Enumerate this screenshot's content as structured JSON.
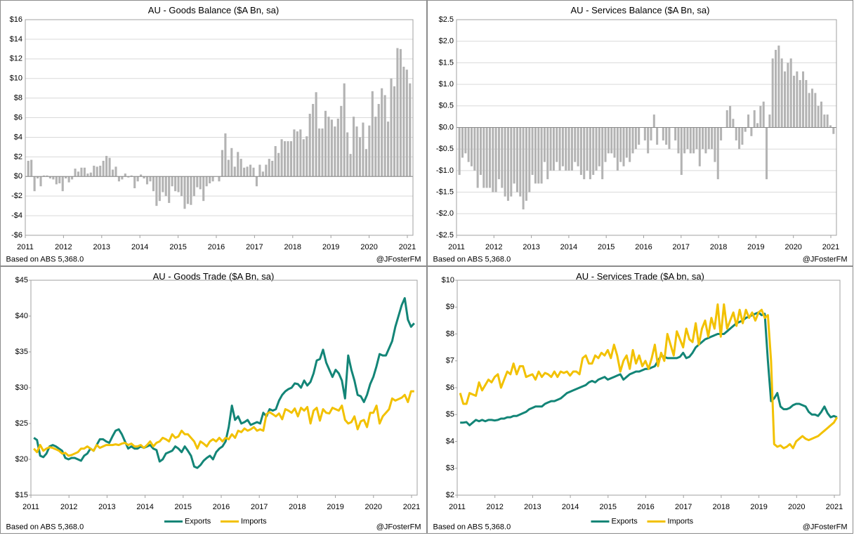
{
  "chart_data": [
    {
      "type": "bar",
      "title": "AU - Goods Balance ($A Bn, sa)",
      "note": "Based on ABS 5,368.0",
      "source": "@JFosterFM",
      "color": "#b3b3b3",
      "grid": true,
      "xlim": [
        2011,
        2021
      ],
      "xticks": [
        2011,
        2012,
        2013,
        2014,
        2015,
        2016,
        2017,
        2018,
        2019,
        2020,
        2021
      ],
      "ylim": [
        -6,
        16
      ],
      "yticks": [
        {
          "value": -6,
          "label": "-$6"
        },
        {
          "value": -4,
          "label": "-$4"
        },
        {
          "value": -2,
          "label": "-$2"
        },
        {
          "value": 0,
          "label": "$0"
        },
        {
          "value": 2,
          "label": "$2"
        },
        {
          "value": 4,
          "label": "$4"
        },
        {
          "value": 6,
          "label": "$6"
        },
        {
          "value": 8,
          "label": "$8"
        },
        {
          "value": 10,
          "label": "$10"
        },
        {
          "value": 12,
          "label": "$12"
        },
        {
          "value": 14,
          "label": "$14"
        },
        {
          "value": 16,
          "label": "$16"
        }
      ],
      "values": [
        1.6,
        1.7,
        -1.5,
        -0.2,
        -1.0,
        0.1,
        0.1,
        -0.2,
        -0.3,
        -0.8,
        -0.7,
        -1.5,
        -0.2,
        -0.6,
        -0.3,
        0.8,
        0.5,
        0.9,
        0.9,
        0.3,
        0.4,
        1.1,
        1.0,
        1.1,
        1.6,
        2.1,
        1.9,
        0.7,
        1.0,
        -0.5,
        -0.3,
        0.3,
        -0.1,
        0.1,
        -1.2,
        -0.5,
        0.2,
        -0.2,
        -0.8,
        -0.5,
        -1.5,
        -3.0,
        -2.5,
        -1.6,
        -2.0,
        -2.7,
        -1.0,
        -1.5,
        -1.6,
        -2.0,
        -3.3,
        -2.8,
        -2.9,
        -2.0,
        -1.1,
        -1.3,
        -2.5,
        -1.0,
        -0.7,
        -0.5,
        0.0,
        -0.5,
        2.7,
        4.4,
        1.7,
        2.9,
        1.0,
        2.5,
        1.8,
        0.9,
        1.0,
        1.2,
        0.9,
        -1.0,
        1.2,
        0.5,
        1.2,
        1.8,
        1.6,
        3.1,
        2.4,
        3.8,
        3.6,
        3.6,
        3.6,
        4.8,
        4.6,
        4.8,
        3.8,
        4.1,
        6.4,
        7.4,
        8.6,
        4.9,
        4.9,
        6.7,
        6.1,
        5.8,
        5.1,
        5.9,
        7.2,
        9.5,
        4.5,
        2.3,
        6.1,
        5.1,
        4.0,
        5.5,
        2.8,
        5.2,
        8.7,
        6.1,
        7.4,
        9.0,
        8.3,
        5.6,
        10.0,
        9.2,
        13.1,
        13.0,
        11.2,
        10.9,
        9.5
      ]
    },
    {
      "type": "bar",
      "title": "AU - Services Balance ($A Bn, sa)",
      "note": "Based on ABS 5,368.0",
      "source": "@JFosterFM",
      "color": "#b3b3b3",
      "grid": true,
      "xlim": [
        2011,
        2021
      ],
      "xticks": [
        2011,
        2012,
        2013,
        2014,
        2015,
        2016,
        2017,
        2018,
        2019,
        2020,
        2021
      ],
      "ylim": [
        -2.5,
        2.5
      ],
      "yticks": [
        {
          "value": -2.5,
          "label": "-$2.5"
        },
        {
          "value": -2,
          "label": "-$2.0"
        },
        {
          "value": -1.5,
          "label": "-$1.5"
        },
        {
          "value": -1,
          "label": "-$1.0"
        },
        {
          "value": -0.5,
          "label": "-$0.5"
        },
        {
          "value": 0,
          "label": "$0.0"
        },
        {
          "value": 0.5,
          "label": "$0.5"
        },
        {
          "value": 1,
          "label": "$1.0"
        },
        {
          "value": 1.5,
          "label": "$1.5"
        },
        {
          "value": 2,
          "label": "$2.0"
        },
        {
          "value": 2.5,
          "label": "$2.5"
        }
      ],
      "values": [
        -1.1,
        -0.7,
        -0.6,
        -0.8,
        -0.9,
        -1.0,
        -1.4,
        -1.1,
        -1.4,
        -1.4,
        -1.4,
        -1.5,
        -1.5,
        -1.2,
        -1.4,
        -1.6,
        -1.7,
        -1.6,
        -1.3,
        -1.5,
        -1.6,
        -1.9,
        -1.7,
        -1.5,
        -1.1,
        -1.3,
        -1.3,
        -1.3,
        -0.8,
        -1.2,
        -1.0,
        -1.0,
        -0.8,
        -1.0,
        -0.9,
        -1.0,
        -1.0,
        -1.0,
        -0.8,
        -0.9,
        -1.1,
        -1.2,
        -1.0,
        -1.2,
        -1.1,
        -1.0,
        -0.9,
        -1.2,
        -0.8,
        -0.6,
        -0.6,
        -0.7,
        -1.0,
        -0.8,
        -0.9,
        -0.7,
        -0.8,
        -0.6,
        -0.5,
        -0.4,
        0.0,
        -0.3,
        -0.6,
        -0.3,
        0.3,
        -0.4,
        0.0,
        -0.3,
        -0.4,
        -0.5,
        0.0,
        -0.3,
        -0.6,
        -1.1,
        -0.6,
        -0.5,
        -0.6,
        -0.6,
        -0.5,
        -0.9,
        -0.5,
        -0.6,
        -0.5,
        -0.5,
        -0.8,
        -1.2,
        -0.3,
        0.0,
        0.4,
        0.5,
        0.2,
        -0.3,
        -0.5,
        -0.4,
        -0.1,
        0.3,
        -0.2,
        0.4,
        0.1,
        0.5,
        0.6,
        -1.2,
        0.3,
        1.6,
        1.8,
        1.9,
        1.6,
        1.3,
        1.5,
        1.6,
        1.2,
        1.3,
        1.1,
        1.3,
        1.1,
        0.8,
        0.9,
        0.8,
        0.5,
        0.6,
        0.3,
        0.3,
        0.05,
        -0.15
      ]
    },
    {
      "type": "line",
      "title": "AU - Goods Trade ($A Bn, sa)",
      "note": "Based on ABS 5,368.0",
      "source": "@JFosterFM",
      "grid": false,
      "xlim": [
        2011,
        2021
      ],
      "xticks": [
        2011,
        2012,
        2013,
        2014,
        2015,
        2016,
        2017,
        2018,
        2019,
        2020,
        2021
      ],
      "ylim": [
        15,
        45
      ],
      "yticks": [
        {
          "value": 15,
          "label": "$15"
        },
        {
          "value": 20,
          "label": "$20"
        },
        {
          "value": 25,
          "label": "$25"
        },
        {
          "value": 30,
          "label": "$30"
        },
        {
          "value": 35,
          "label": "$35"
        },
        {
          "value": 40,
          "label": "$40"
        },
        {
          "value": 45,
          "label": "$45"
        }
      ],
      "series": [
        {
          "name": "Exports",
          "color": "#138577",
          "values": [
            23,
            22.7,
            20.5,
            20.3,
            20.8,
            21.8,
            22,
            21.8,
            21.5,
            21.2,
            20.2,
            20,
            20.2,
            20.2,
            20,
            19.8,
            20.5,
            20.8,
            21.5,
            21.2,
            22,
            22.8,
            22.8,
            22.5,
            22.3,
            23.2,
            24,
            24.2,
            23.5,
            22.5,
            21.5,
            21.8,
            21.5,
            21.5,
            21.8,
            21.6,
            21.8,
            22,
            21.5,
            21.3,
            19.7,
            20,
            20.8,
            21,
            21.2,
            21.8,
            21.5,
            21,
            21.8,
            21.2,
            20.5,
            19,
            18.8,
            19.2,
            19.8,
            20.2,
            20.5,
            20,
            21,
            21.5,
            21.8,
            22.5,
            24.5,
            27.5,
            25.5,
            26,
            25,
            25.2,
            25.5,
            24.8,
            25,
            25.2,
            25,
            26.5,
            26,
            27,
            26.8,
            27,
            28.2,
            29,
            29.5,
            29.8,
            30,
            30.6,
            30.5,
            30,
            31,
            30.3,
            30.8,
            32,
            33.8,
            34,
            35.3,
            33.5,
            32.5,
            31.5,
            32.5,
            32,
            31,
            28.5,
            34.5,
            32.5,
            31,
            29,
            28.8,
            28,
            29,
            30.5,
            31.5,
            33,
            34.7,
            34.5,
            34.5,
            35.5,
            36.5,
            38.5,
            40,
            41.5,
            42.5,
            39.5,
            38.5,
            39
          ]
        },
        {
          "name": "Imports",
          "color": "#f2c100",
          "values": [
            21.5,
            21,
            22,
            21.2,
            21.5,
            21.7,
            21.6,
            21.4,
            21.2,
            20.8,
            20.9,
            20.5,
            20.6,
            20.8,
            21,
            21.5,
            21.5,
            21.8,
            21.5,
            21.2,
            22,
            21.6,
            21.8,
            22,
            22,
            22,
            22.1,
            22,
            22.2,
            22.3,
            22,
            22.2,
            21.8,
            21.8,
            22,
            21.6,
            22,
            22.5,
            21.8,
            22.3,
            22.5,
            23,
            22.8,
            22.5,
            23.5,
            23,
            23.2,
            24,
            23.5,
            23.5,
            23,
            22.5,
            21.5,
            22.5,
            22.2,
            21.8,
            22.5,
            22.8,
            22.5,
            23,
            22.5,
            23,
            22.8,
            23.5,
            23,
            24,
            23.8,
            24.3,
            24,
            24.2,
            24.5,
            24,
            24.2,
            24,
            26.3,
            26.6,
            26.3,
            26,
            26.4,
            25.6,
            27,
            26.8,
            26.5,
            27.1,
            26,
            27.2,
            26.8,
            27.3,
            25,
            26.8,
            27.2,
            25.4,
            27,
            26.5,
            26.4,
            27.2,
            27,
            26.8,
            27.5,
            25.5,
            25,
            25.2,
            26,
            24.2,
            25.3,
            25.5,
            24.5,
            26.5,
            26.5,
            27.5,
            25,
            26,
            26.5,
            27,
            28.5,
            28.2,
            28.4,
            28.6,
            29,
            28,
            29.5,
            29.5
          ]
        }
      ]
    },
    {
      "type": "line",
      "title": "AU - Services Trade ($A bn, sa)",
      "note": "Based on ABS 5,368.0",
      "source": "@JFosterFM",
      "grid": false,
      "xlim": [
        2011,
        2021
      ],
      "xticks": [
        2011,
        2012,
        2013,
        2014,
        2015,
        2016,
        2017,
        2018,
        2019,
        2020,
        2021
      ],
      "ylim": [
        2,
        10
      ],
      "yticks": [
        {
          "value": 2,
          "label": "$2"
        },
        {
          "value": 3,
          "label": "$3"
        },
        {
          "value": 4,
          "label": "$4"
        },
        {
          "value": 5,
          "label": "$5"
        },
        {
          "value": 6,
          "label": "$6"
        },
        {
          "value": 7,
          "label": "$7"
        },
        {
          "value": 8,
          "label": "$8"
        },
        {
          "value": 9,
          "label": "$9"
        },
        {
          "value": 10,
          "label": "$10"
        }
      ],
      "series": [
        {
          "name": "Exports",
          "color": "#138577",
          "values": [
            4.7,
            4.7,
            4.72,
            4.6,
            4.7,
            4.8,
            4.75,
            4.8,
            4.75,
            4.8,
            4.8,
            4.78,
            4.8,
            4.85,
            4.85,
            4.9,
            4.9,
            4.95,
            4.95,
            5.0,
            5.05,
            5.1,
            5.2,
            5.25,
            5.3,
            5.3,
            5.3,
            5.4,
            5.45,
            5.5,
            5.5,
            5.55,
            5.6,
            5.7,
            5.8,
            5.85,
            5.9,
            5.95,
            6.0,
            6.05,
            6.1,
            6.2,
            6.25,
            6.2,
            6.3,
            6.35,
            6.4,
            6.3,
            6.35,
            6.4,
            6.45,
            6.5,
            6.3,
            6.4,
            6.5,
            6.55,
            6.6,
            6.6,
            6.65,
            6.7,
            6.7,
            6.75,
            6.8,
            7.0,
            7.2,
            7.15,
            7.1,
            7.1,
            7.1,
            7.1,
            7.15,
            7.3,
            7.1,
            7.15,
            7.3,
            7.5,
            7.6,
            7.7,
            7.8,
            7.85,
            7.9,
            7.95,
            8.0,
            8.0,
            8.0,
            8.1,
            8.2,
            8.3,
            8.4,
            8.45,
            8.5,
            8.6,
            8.65,
            8.7,
            8.75,
            8.8,
            8.7,
            8.75,
            7.0,
            5.5,
            5.6,
            5.8,
            5.3,
            5.2,
            5.2,
            5.25,
            5.35,
            5.4,
            5.4,
            5.35,
            5.3,
            5.1,
            5.0,
            5.0,
            4.95,
            5.1,
            5.3,
            5.05,
            4.9,
            4.95,
            4.9
          ]
        },
        {
          "name": "Imports",
          "color": "#f2c100",
          "values": [
            5.8,
            5.4,
            5.4,
            5.8,
            5.75,
            5.7,
            6.2,
            5.9,
            6.1,
            6.3,
            6.2,
            6.4,
            6.5,
            6.0,
            6.3,
            6.6,
            6.5,
            6.9,
            6.5,
            6.8,
            6.8,
            6.4,
            6.45,
            6.5,
            6.3,
            6.6,
            6.4,
            6.55,
            6.5,
            6.4,
            6.6,
            6.4,
            6.6,
            6.55,
            6.6,
            6.45,
            6.6,
            6.6,
            6.5,
            7.1,
            7.2,
            6.9,
            6.9,
            7.2,
            7.1,
            7.3,
            7.2,
            7.4,
            7.1,
            7.6,
            7.2,
            6.6,
            7.0,
            7.2,
            6.7,
            7.4,
            6.9,
            7.2,
            6.8,
            7.0,
            6.7,
            7.1,
            7.6,
            6.8,
            7.3,
            7.0,
            8.0,
            7.6,
            7.2,
            8.1,
            7.8,
            7.5,
            8.2,
            7.8,
            7.7,
            8.4,
            7.6,
            8.2,
            8.5,
            7.9,
            8.6,
            8.2,
            9.1,
            7.9,
            9.1,
            8.2,
            8.5,
            8.8,
            8.3,
            8.9,
            8.4,
            8.9,
            8.6,
            8.8,
            8.5,
            8.8,
            8.9,
            8.6,
            8.7,
            7.0,
            3.9,
            3.8,
            3.85,
            3.75,
            3.8,
            3.9,
            3.75,
            4.0,
            4.1,
            4.2,
            4.1,
            4.05,
            4.1,
            4.15,
            4.2,
            4.3,
            4.4,
            4.5,
            4.6,
            4.7,
            4.9
          ]
        }
      ]
    }
  ]
}
